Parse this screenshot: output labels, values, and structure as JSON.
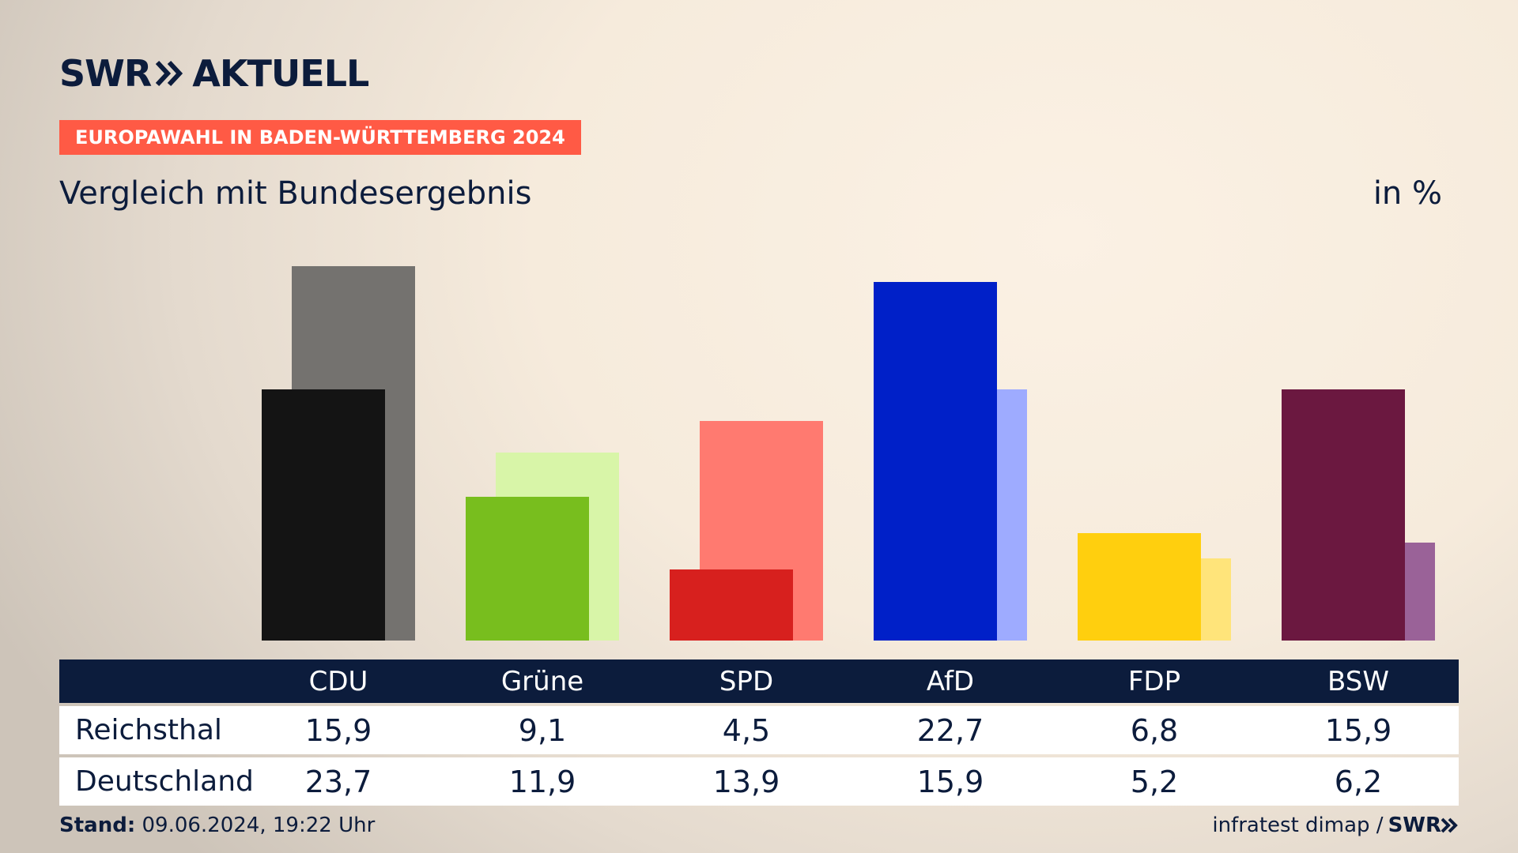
{
  "brand": {
    "logo_left": "SWR",
    "logo_right": "AKTUELL",
    "chevron_icon": "double-chevron-right-icon"
  },
  "tag": "EUROPAWAHL IN BADEN-WÜRTTEMBERG 2024",
  "subtitle": "Vergleich mit Bundesergebnis",
  "unit": "in %",
  "chart_data": {
    "type": "bar",
    "title": "",
    "subtitle": "Vergleich mit Bundesergebnis",
    "ylabel": "in %",
    "ylim": [
      0,
      26
    ],
    "categories": [
      "CDU",
      "Grüne",
      "SPD",
      "AfD",
      "FDP",
      "BSW"
    ],
    "series": [
      {
        "name": "Reichsthal",
        "values": [
          15.9,
          9.1,
          4.5,
          22.7,
          6.8,
          15.9
        ],
        "labels": [
          "15,9",
          "9,1",
          "4,5",
          "22,7",
          "6,8",
          "15,9"
        ]
      },
      {
        "name": "Deutschland",
        "values": [
          23.7,
          11.9,
          13.9,
          15.9,
          5.2,
          6.2
        ],
        "labels": [
          "23,7",
          "11,9",
          "13,9",
          "15,9",
          "5,2",
          "6,2"
        ]
      }
    ],
    "colors": {
      "Reichsthal": [
        "#141414",
        "#78be1e",
        "#d7201e",
        "#0020c8",
        "#ffcf0e",
        "#6b1840"
      ],
      "Deutschland": [
        "#74726f",
        "#d8f5a8",
        "#ff7a70",
        "#9eabff",
        "#ffe47a",
        "#9a6298"
      ]
    },
    "legend": "table-below",
    "grid": false
  },
  "footer": {
    "stand_label": "Stand:",
    "stand_value": "09.06.2024, 19:22 Uhr",
    "source": "infratest dimap /",
    "source_logo": "SWR"
  }
}
